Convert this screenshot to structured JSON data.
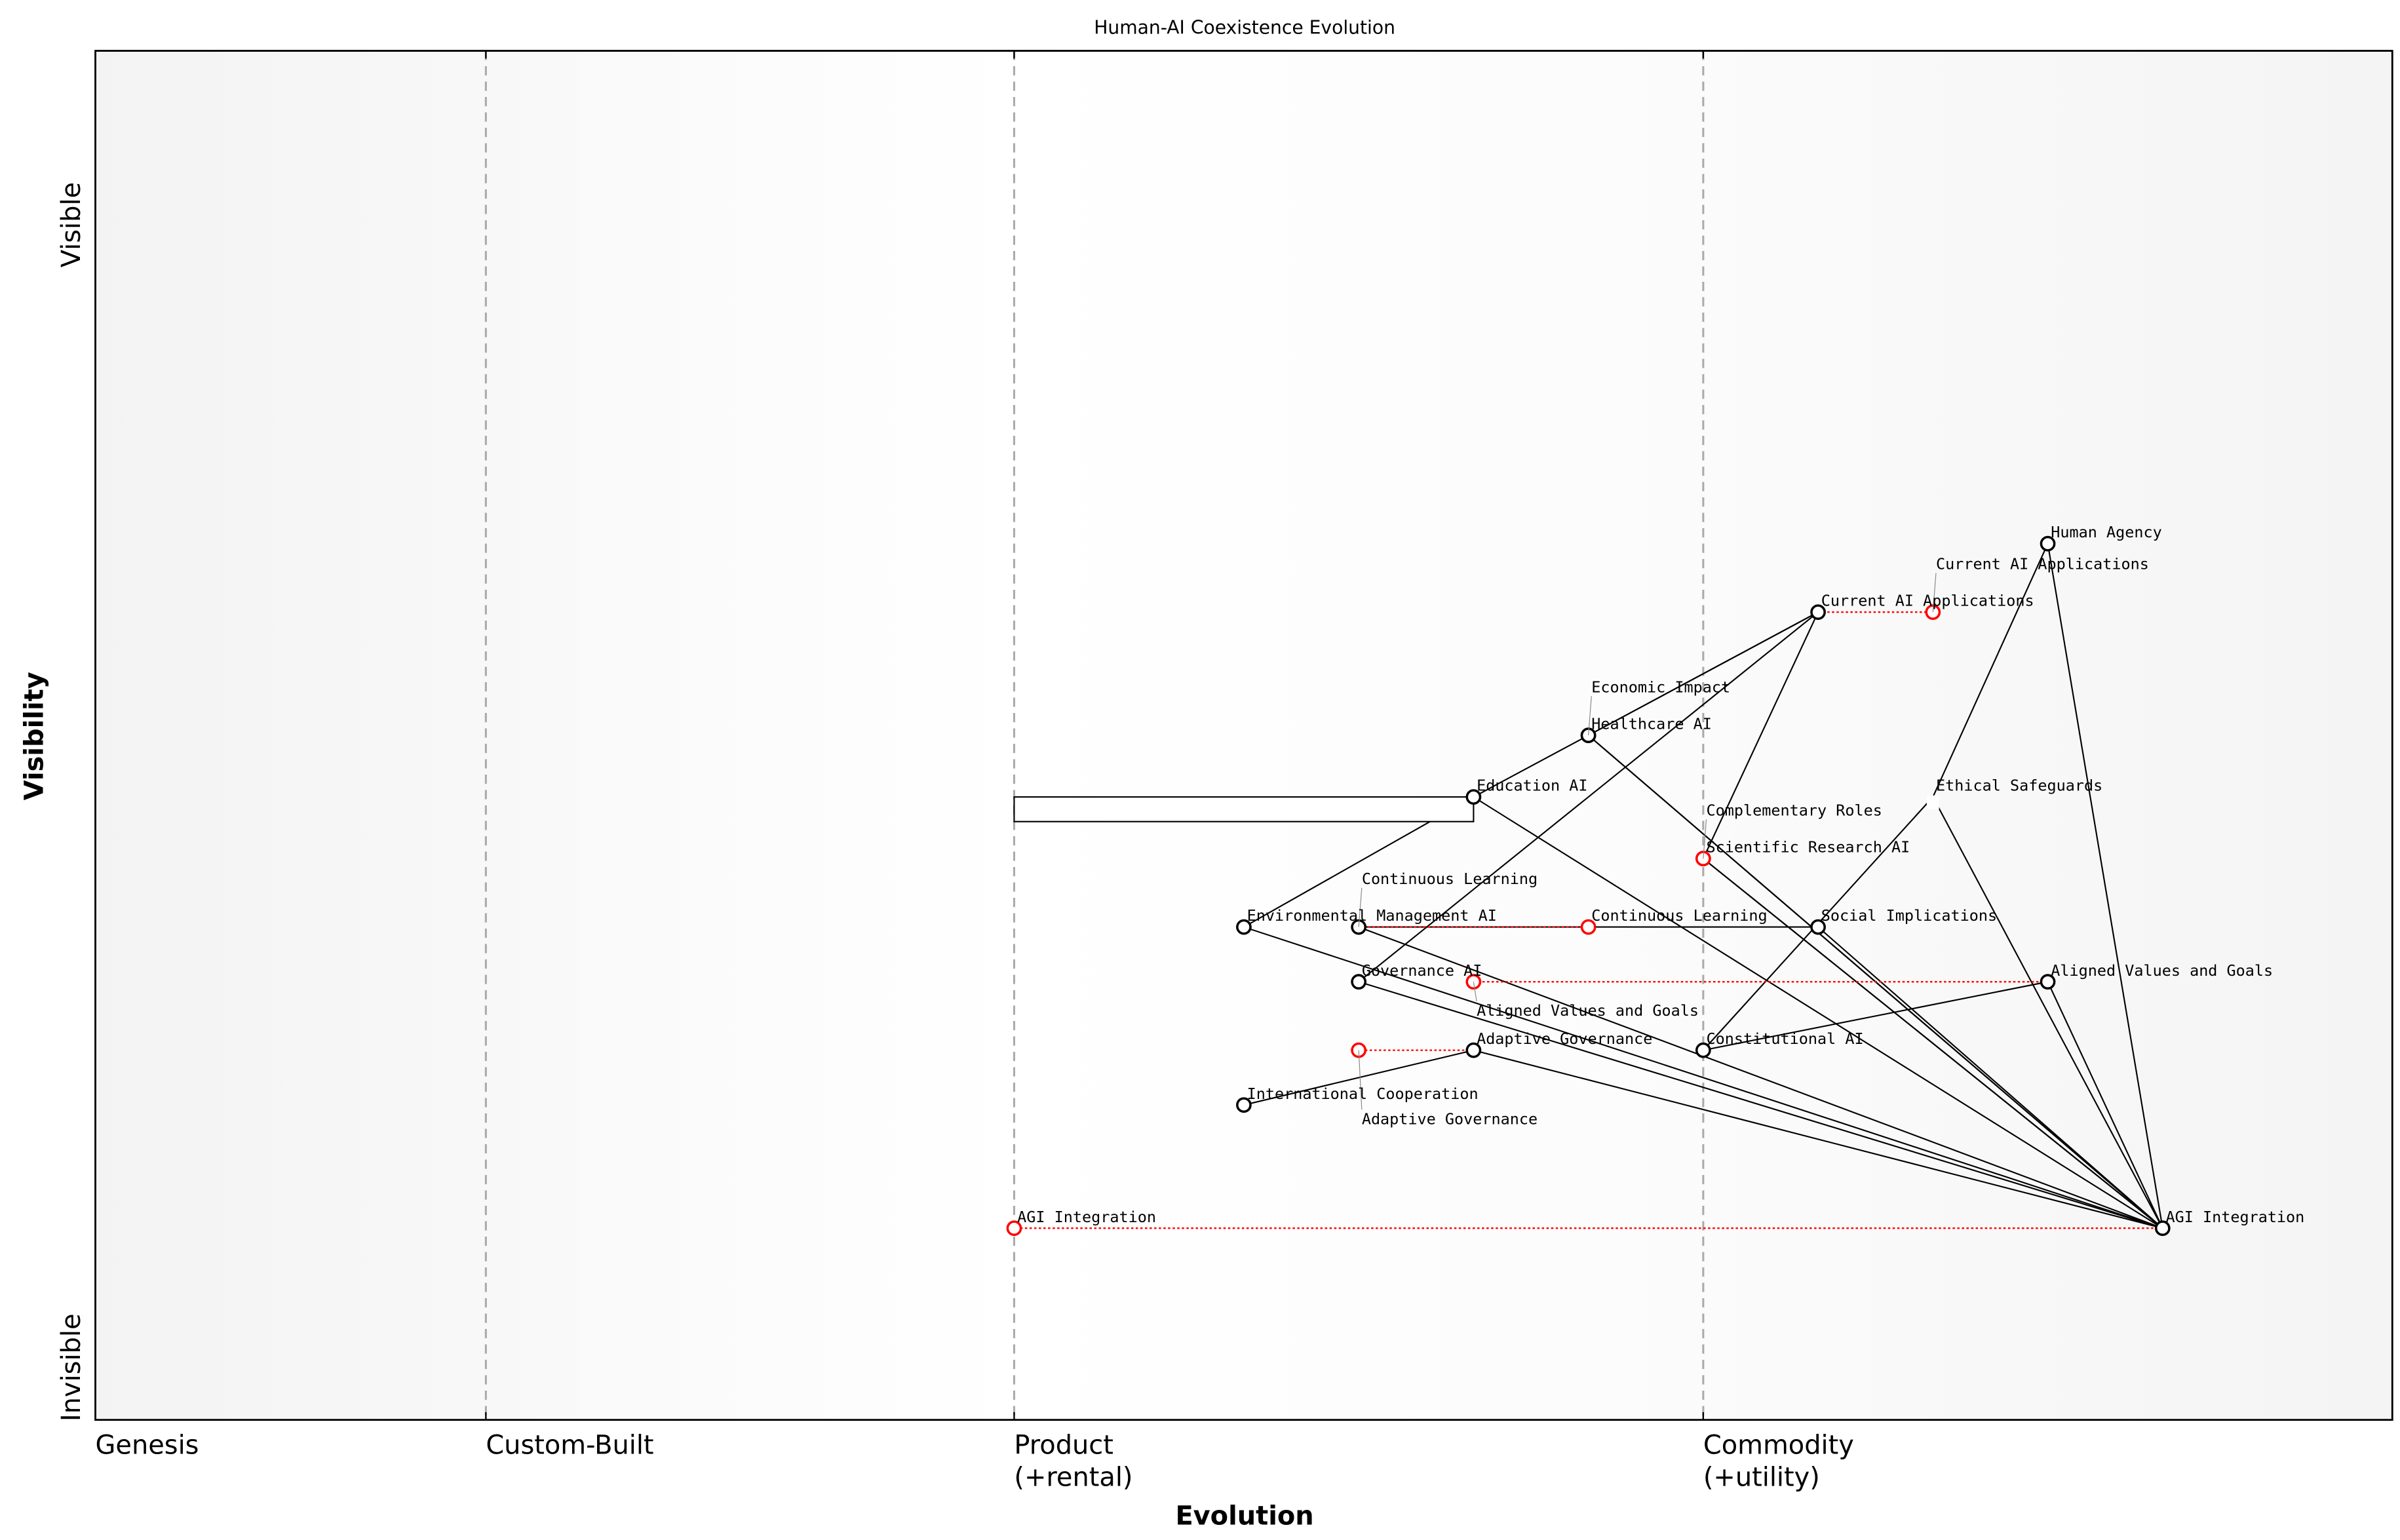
{
  "title": "Human-AI Coexistence Evolution",
  "x_axis": {
    "label": "Evolution",
    "stages": [
      {
        "lines": [
          "Genesis"
        ],
        "evolution": 0.0
      },
      {
        "lines": [
          "Custom-Built"
        ],
        "evolution": 0.17
      },
      {
        "lines": [
          "Product",
          "(+rental)"
        ],
        "evolution": 0.4
      },
      {
        "lines": [
          "Commodity",
          "(+utility)"
        ],
        "evolution": 0.7
      }
    ]
  },
  "y_axis": {
    "label": "Visibility",
    "top": "Visible",
    "bottom": "Invisible"
  },
  "colors": {
    "node": "#000000",
    "evolve": "#ff0000",
    "stage_line": "#aaaaaa",
    "shade": "#f4f4f4"
  },
  "components": [
    {
      "id": "human-agency",
      "name": "Human Agency",
      "evolution": 0.85,
      "visibility": 0.64
    },
    {
      "id": "current-ai",
      "name": "Current AI Applications",
      "evolution": 0.75,
      "visibility": 0.59
    },
    {
      "id": "healthcare",
      "name": "Healthcare AI",
      "evolution": 0.65,
      "visibility": 0.5
    },
    {
      "id": "economic",
      "name": "Economic Impact",
      "evolution": 0.65,
      "visibility": 0.5
    },
    {
      "id": "education",
      "name": "Education AI",
      "evolution": 0.6,
      "visibility": 0.455
    },
    {
      "id": "ethical",
      "name": "Ethical Safeguards",
      "evolution": 0.8,
      "visibility": 0.455,
      "marker": "hidden"
    },
    {
      "id": "scientific",
      "name": "Scientific Research AI",
      "evolution": 0.7,
      "visibility": 0.41,
      "marker": "evolved"
    },
    {
      "id": "complementary",
      "name": "Complementary Roles",
      "evolution": 0.7,
      "visibility": 0.41,
      "marker": "evolved"
    },
    {
      "id": "environmental",
      "name": "Environmental Management AI",
      "evolution": 0.5,
      "visibility": 0.36
    },
    {
      "id": "continuous",
      "name": "Continuous Learning",
      "evolution": 0.55,
      "visibility": 0.36
    },
    {
      "id": "social",
      "name": "Social Implications",
      "evolution": 0.75,
      "visibility": 0.36
    },
    {
      "id": "governance",
      "name": "Governance AI",
      "evolution": 0.55,
      "visibility": 0.32
    },
    {
      "id": "aligned",
      "name": "Aligned Values and Goals",
      "evolution": 0.85,
      "visibility": 0.32
    },
    {
      "id": "adaptive",
      "name": "Adaptive Governance",
      "evolution": 0.6,
      "visibility": 0.27
    },
    {
      "id": "constitutional",
      "name": "Constitutional AI",
      "evolution": 0.7,
      "visibility": 0.27
    },
    {
      "id": "international",
      "name": "International Cooperation",
      "evolution": 0.5,
      "visibility": 0.23
    },
    {
      "id": "agi",
      "name": "AGI Integration",
      "evolution": 0.9,
      "visibility": 0.14
    }
  ],
  "evolutions": [
    {
      "name": "Current AI Applications",
      "from": "current-ai",
      "to_evolution": 0.8
    },
    {
      "name": "Continuous Learning",
      "from": "continuous",
      "to_evolution": 0.65
    },
    {
      "name": "Aligned Values and Goals",
      "from": "aligned",
      "to_evolution": 0.6
    },
    {
      "name": "Adaptive Governance",
      "from": "adaptive",
      "to_evolution": 0.55
    },
    {
      "name": "AGI Integration",
      "from": "agi",
      "to_evolution": 0.4
    }
  ],
  "pipelines": [
    {
      "component": "education",
      "start": 0.4,
      "end": 0.6
    }
  ],
  "links": [
    [
      "current-ai",
      "healthcare"
    ],
    [
      "current-ai",
      "economic"
    ],
    [
      "current-ai",
      "governance"
    ],
    [
      "current-ai",
      "scientific"
    ],
    [
      "healthcare",
      "education"
    ],
    [
      "education",
      "environmental"
    ],
    [
      "healthcare",
      "agi"
    ],
    [
      "economic",
      "agi"
    ],
    [
      "education",
      "agi"
    ],
    [
      "scientific",
      "agi"
    ],
    [
      "complementary",
      "agi"
    ],
    [
      "environmental",
      "agi"
    ],
    [
      "continuous",
      "agi"
    ],
    [
      "continuous",
      "social"
    ],
    [
      "governance",
      "agi"
    ],
    [
      "adaptive",
      "agi"
    ],
    [
      "international",
      "adaptive"
    ],
    [
      "social",
      "agi"
    ],
    [
      "ethical",
      "constitutional"
    ],
    [
      "constitutional",
      "aligned"
    ],
    [
      "aligned",
      "agi"
    ],
    [
      "human-agency",
      "ethical"
    ],
    [
      "human-agency",
      "agi"
    ],
    [
      "ethical",
      "agi"
    ]
  ]
}
